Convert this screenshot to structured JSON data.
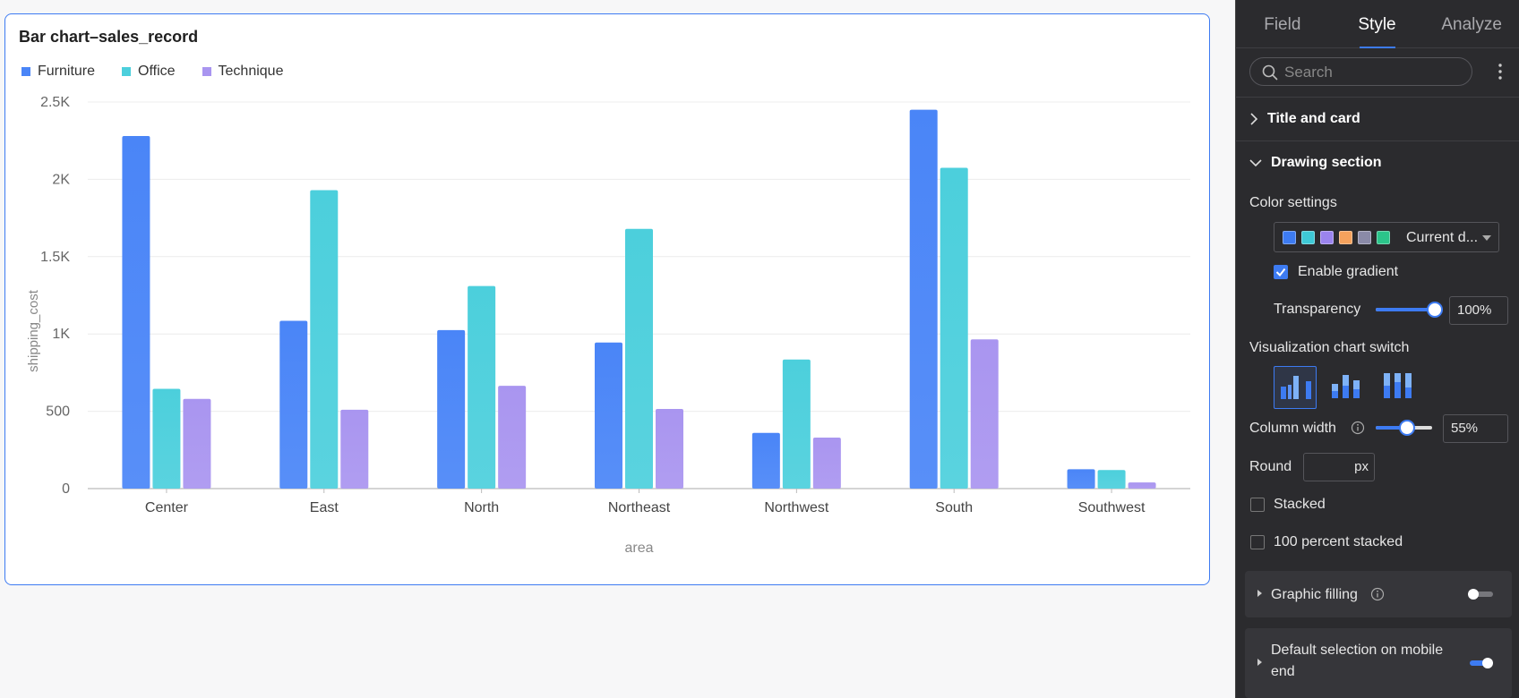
{
  "chart_data": {
    "type": "bar",
    "title": "Bar chart–sales_record",
    "xlabel": "area",
    "ylabel": "shipping_cost",
    "ylim": [
      0,
      2500
    ],
    "yticks": [
      "0",
      "500",
      "1K",
      "1.5K",
      "2K",
      "2.5K"
    ],
    "ytick_values": [
      0,
      500,
      1000,
      1500,
      2000,
      2500
    ],
    "categories": [
      "Center",
      "East",
      "North",
      "Northeast",
      "Northwest",
      "South",
      "Southwest"
    ],
    "series": [
      {
        "name": "Furniture",
        "color": "#4a85f7",
        "values": [
          2280,
          1085,
          1025,
          945,
          360,
          2450,
          125
        ]
      },
      {
        "name": "Office",
        "color": "#4ccfdc",
        "values": [
          645,
          1930,
          1310,
          1680,
          835,
          2075,
          120
        ]
      },
      {
        "name": "Technique",
        "color": "#a995f0",
        "values": [
          580,
          510,
          665,
          515,
          330,
          965,
          40
        ]
      }
    ],
    "grid": true,
    "legend_position": "top-left"
  },
  "panel": {
    "tabs": [
      "Field",
      "Style",
      "Analyze"
    ],
    "active_tab": "Style",
    "search": {
      "placeholder": "Search",
      "value": ""
    },
    "sections": {
      "title_and_card": "Title and card",
      "drawing_section": "Drawing section"
    },
    "color_settings": {
      "label": "Color settings",
      "palette_colors": [
        "#3d7bf2",
        "#3ec9d6",
        "#9b84ee",
        "#f5a25d",
        "#8a8aa8",
        "#2bc48a"
      ],
      "palette_name": "Current d..."
    },
    "enable_gradient": {
      "label": "Enable gradient",
      "checked": true
    },
    "transparency": {
      "label": "Transparency",
      "value": "100%",
      "fraction": 1.0
    },
    "viz_switch": {
      "label": "Visualization chart switch",
      "options": [
        "grouped",
        "stacked",
        "percent-stacked"
      ],
      "selected": "grouped"
    },
    "column_width": {
      "label": "Column width",
      "value": "55%",
      "fraction": 0.55
    },
    "round": {
      "label": "Round",
      "value": "",
      "unit": "px"
    },
    "stacked": {
      "label": "Stacked",
      "checked": false
    },
    "percent_stacked": {
      "label": "100 percent stacked",
      "checked": false
    },
    "graphic_filling": {
      "label": "Graphic filling",
      "enabled": false
    },
    "default_selection": {
      "label_line1": "Default selection on mobile",
      "label_line2": "end",
      "enabled": true
    }
  },
  "colors": {
    "accent": "#3d7bf2",
    "panel_bg": "#2b2b2e"
  }
}
